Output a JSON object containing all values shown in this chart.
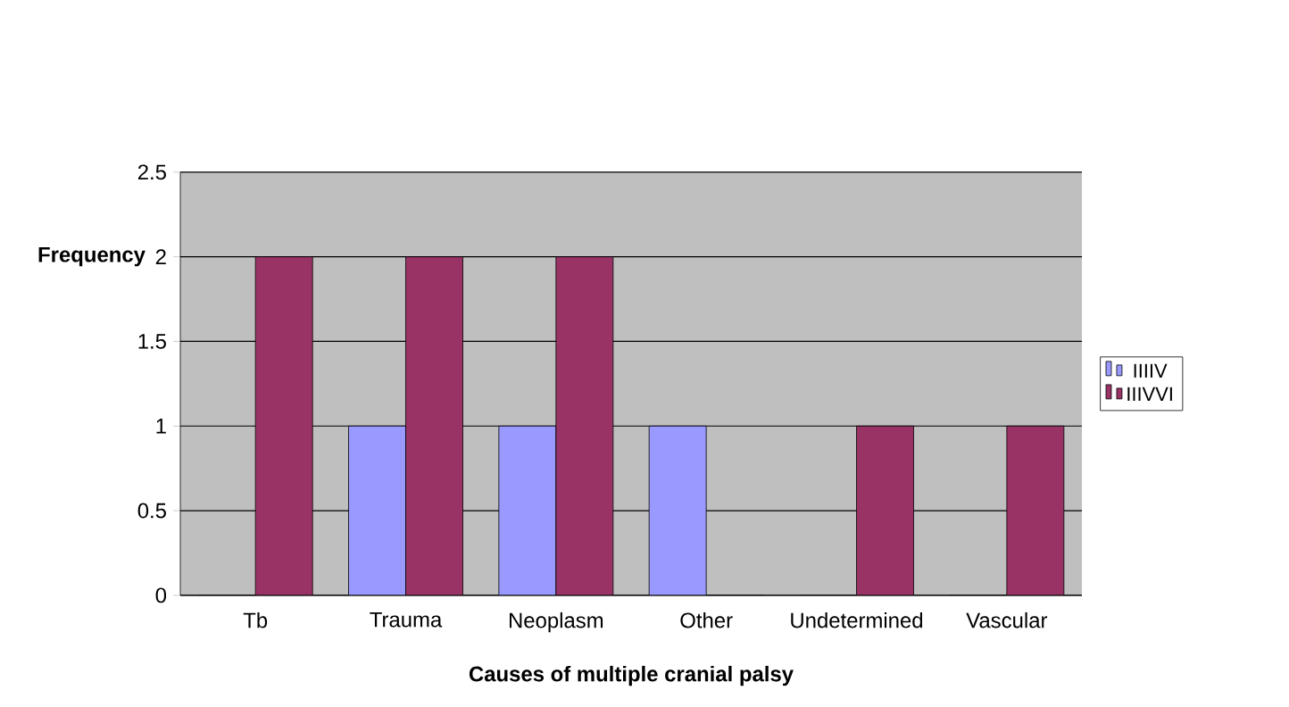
{
  "chart_data": {
    "type": "bar",
    "xlabel": "Causes of multiple  cranial palsy",
    "ylabel": "Frequency",
    "categories": [
      "Tb",
      "Trauma",
      "Neoplasm",
      "Other",
      "Undetermined",
      "Vascular"
    ],
    "series": [
      {
        "name": "IIIIV",
        "color": "#9999ff",
        "values": [
          0,
          1,
          1,
          1,
          0,
          0
        ]
      },
      {
        "name": "IIIVVI",
        "color": "#993366",
        "values": [
          2,
          2,
          2,
          0,
          1,
          1
        ]
      }
    ],
    "ylim": [
      0,
      2.5
    ],
    "yticks": [
      0,
      0.5,
      1,
      1.5,
      2,
      2.5
    ],
    "grid": "y",
    "legend": "right"
  }
}
